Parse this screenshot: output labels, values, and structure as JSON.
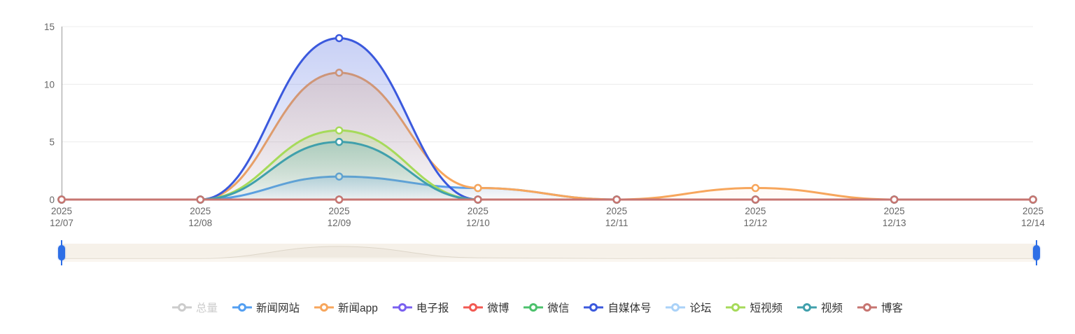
{
  "page": {
    "background": "#ffffff"
  },
  "chart_data": {
    "type": "line",
    "smooth": true,
    "grid": true,
    "legend_position": "bottom",
    "x_axis": {
      "year": "2025",
      "dates": [
        "12/07",
        "12/08",
        "12/09",
        "12/10",
        "12/11",
        "12/12",
        "12/13",
        "12/14"
      ]
    },
    "y_axis": {
      "min": 0,
      "max": 15,
      "ticks": [
        0,
        5,
        10,
        15
      ]
    },
    "series": [
      {
        "name": "总量",
        "color": "#c8c8c8",
        "selected": false
      },
      {
        "name": "新闻网站",
        "color": "#539ff2",
        "selected": true,
        "values": [
          0,
          0,
          2,
          1,
          0,
          0,
          0,
          0
        ]
      },
      {
        "name": "新闻app",
        "color": "#f7a65c",
        "selected": true,
        "values": [
          0,
          0,
          11,
          1,
          0,
          1,
          0,
          0
        ]
      },
      {
        "name": "电子报",
        "color": "#7a60f0",
        "selected": true,
        "values": [
          0,
          0,
          0,
          0,
          0,
          0,
          0,
          0
        ]
      },
      {
        "name": "微博",
        "color": "#f25952",
        "selected": true,
        "values": [
          0,
          0,
          0,
          0,
          0,
          0,
          0,
          0
        ]
      },
      {
        "name": "微信",
        "color": "#4cc16c",
        "selected": true,
        "values": [
          0,
          0,
          0,
          0,
          0,
          0,
          0,
          0
        ]
      },
      {
        "name": "自媒体号",
        "color": "#3b59dd",
        "selected": true,
        "values": [
          0,
          0,
          14,
          0,
          0,
          0,
          0,
          0
        ]
      },
      {
        "name": "论坛",
        "color": "#aad2f8",
        "selected": true,
        "values": [
          0,
          0,
          0,
          0,
          0,
          0,
          0,
          0
        ]
      },
      {
        "name": "短视频",
        "color": "#a6da5a",
        "selected": true,
        "values": [
          0,
          0,
          6,
          0,
          0,
          0,
          0,
          0
        ]
      },
      {
        "name": "视频",
        "color": "#40a0ac",
        "selected": true,
        "values": [
          0,
          0,
          5,
          0,
          0,
          0,
          0,
          0
        ]
      },
      {
        "name": "博客",
        "color": "#c77571",
        "selected": true,
        "values": [
          0,
          0,
          0,
          0,
          0,
          0,
          0,
          0
        ]
      }
    ]
  },
  "colors": {
    "axis_text": "#666666",
    "grid_line": "#ececec",
    "axis_line": "#999999",
    "legend_text": "#333333",
    "legend_inactive": "#cccccc",
    "slider_track": "#f6f1e9",
    "slider_shadow": "#ddd6c9",
    "slider_handle": "#2e6fe6"
  }
}
